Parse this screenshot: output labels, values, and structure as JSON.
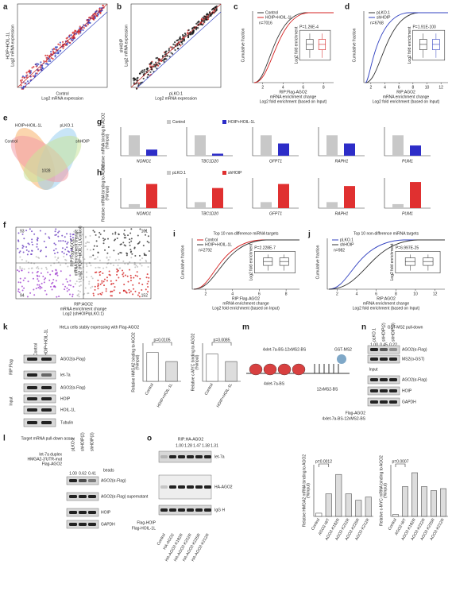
{
  "panels": {
    "a": {
      "label": "a",
      "y_label": "HOIP+HOIL-1L",
      "y_sub": "Log2 mRNA expression",
      "x_label": "Control",
      "x_sub": "Log2 mRNA expression"
    },
    "b": {
      "label": "b",
      "y_label": "shHOIP",
      "y_sub": "Log2 mRNA expression",
      "x_label": "pLKO.1",
      "x_sub": "Log2 mRNA expression"
    },
    "c": {
      "label": "c",
      "legend": [
        "Control",
        "HOIP+HOIL-1L"
      ],
      "n": "n=7016",
      "p": "P=1.26E-4",
      "y_label": "Cumulative fraction",
      "x_label": [
        "RIP:Flag-AGO2",
        "mRNA enrichment change",
        "Log2 fold enrichment (based on Input)"
      ],
      "xticks": [
        2,
        4,
        6,
        8
      ],
      "inset_y": "Log2 fold enrichment"
    },
    "d": {
      "label": "d",
      "legend": [
        "pLKO.1",
        "shHOIP"
      ],
      "n": "n=6768",
      "p": "P=1.91E-100",
      "y_label": "Cumulative fraction",
      "x_label": [
        "RIP:AGO2",
        "mRNA enrichment change",
        "Log2 fold enrichment (based on Input)"
      ],
      "xticks": [
        2,
        4,
        6,
        8,
        10,
        12
      ],
      "inset_y": "Log2 fold enrichment"
    },
    "e": {
      "label": "e",
      "sets": [
        "HOIP+HOIL-1L",
        "pLKO.1",
        "Control",
        "shHOIP"
      ],
      "overlap": "1028"
    },
    "f": {
      "label": "f",
      "y_label": [
        "RIP:Flag-AGO2",
        "mRNA enrichment change",
        "Log2 (HOIP+HOIL-1L/Control)"
      ],
      "x_label": [
        "RIP:AGO2",
        "mRNA enrichment change",
        "Log2 (shHOIP/pLKO.1)"
      ],
      "quadrants": [
        "93",
        "101",
        "94",
        "152"
      ]
    },
    "g": {
      "label": "g",
      "y_label": [
        "Relative mRNA binding to AGO2",
        "(%Input)"
      ],
      "categories": [
        "NOMO1",
        "TBC1D20",
        "GFPT1",
        "RAPH1",
        "PUM1"
      ],
      "ylim": [
        0,
        1.4
      ],
      "series": [
        {
          "name": "Control",
          "color": "#c8c8c8",
          "values": [
            1.0,
            1.0,
            1.0,
            1.0,
            1.0
          ]
        },
        {
          "name": "HOIP+HOIL-1L",
          "color": "#2d2dc8",
          "values": [
            0.3,
            0.1,
            0.6,
            0.6,
            0.5
          ]
        }
      ]
    },
    "h": {
      "label": "h",
      "y_label": [
        "Relative mRNA binding to AGO2",
        "(%Input)"
      ],
      "categories": [
        "NOMO1",
        "TBC1D20",
        "GFPT1",
        "RAPH1",
        "PUM1"
      ],
      "ylim": [
        0,
        1.5
      ],
      "series": [
        {
          "name": "pLKO.1",
          "color": "#c8c8c8",
          "values": [
            0.2,
            0.3,
            0.3,
            0.3,
            0.2
          ]
        },
        {
          "name": "shHOIP",
          "color": "#e03030",
          "values": [
            1.2,
            1.0,
            1.2,
            1.1,
            1.3
          ]
        }
      ]
    },
    "i": {
      "label": "i",
      "title": "Top 10 non-difference miRNA targets",
      "legend": [
        "Control",
        "HOIP+HOIL-1L"
      ],
      "n": "n=2792",
      "p": "P=2.228E-7",
      "y_label": "Cumulative fraction",
      "x_label": [
        "RIP:Flag-AGO2",
        "mRNA enrichment change",
        "Log2 fold enrichment (based on Input)"
      ],
      "xticks": [
        2,
        4,
        6,
        8
      ],
      "inset_y": "Log2 fold enrichment"
    },
    "j": {
      "label": "j",
      "title": "Top 10 non-difference miRNA targets",
      "legend": [
        "pLKO.1",
        "shHOIP"
      ],
      "n": "n=982",
      "p": "P=6.997E-25",
      "y_label": "Cumulative fraction",
      "x_label": [
        "RIP:AGO2",
        "mRNA enrichment change",
        "Log2 fold enrichment (based on Input)"
      ],
      "xticks": [
        2,
        4,
        6,
        8,
        10,
        12
      ],
      "inset_y": "Log2 fold enrichment"
    },
    "k": {
      "label": "k",
      "title": "HeLa cells stably expressing with Flag-AGO2",
      "lanes": [
        "Control",
        "HOIP+HOIL-1L"
      ],
      "groups": [
        "RIP:Flag",
        "Input"
      ],
      "blots": [
        "AGO2(α-Flag)",
        "let-7a",
        "AGO2(α-Flag)",
        "HOIP",
        "HOIL-1L",
        "Tubulin"
      ],
      "charts": [
        {
          "y_label": [
            "Relative HMGA2 binding to AGO2",
            "(%Input)"
          ],
          "p": "p=0.0105",
          "categories": [
            "Control",
            "HOIP+HOIL-1L"
          ],
          "values": [
            1.9,
            1.3
          ],
          "ylim": [
            0,
            2.5
          ]
        },
        {
          "y_label": [
            "Relative c-MYC binding to AGO2",
            "(%Input)"
          ],
          "p": "p=0.0085",
          "categories": [
            "Control",
            "HOIP+HOIL-1L"
          ],
          "values": [
            1.8,
            1.3
          ],
          "ylim": [
            0,
            2.5
          ]
        }
      ]
    },
    "m": {
      "label": "m",
      "construct": "4xlet-7a-BS-12xMS2-BS",
      "protein": "GST-MS2",
      "site1": "4xlet-7a-BS",
      "site2": "12xMS2-BS"
    },
    "n": {
      "label": "n",
      "title": "GST-MS2 pull-down",
      "lanes": [
        "pLKO.1",
        "shHOIP(2)",
        "shHOIP(3)"
      ],
      "ratios": [
        "1.00",
        "0.45",
        "0.22"
      ],
      "input": "Input",
      "blots": [
        "AGO2(α-Flag)",
        "MS2(α-GST)",
        "AGO2(α-Flag)",
        "HOIP",
        "GAPDH"
      ],
      "rows": [
        "Flag-AGO2",
        "4xlet-7a-BS-12xMS2-BS"
      ]
    },
    "l": {
      "label": "l",
      "title": "Target mRNA pull-down assay",
      "rows": [
        "let-7a duplex",
        "HMGA2-3'UTR-mut",
        "Flag-AGO2"
      ],
      "lanes": [
        "pLKO.1",
        "shHOIP(2)",
        "shHOIP(3)"
      ],
      "beads": "beads",
      "ratios": [
        "1.00",
        "0.62",
        "0.41"
      ],
      "blots": [
        "AGO2(α-Flag)",
        "AGO2(α-Flag) supernatant",
        "HOIP",
        "GAPDH"
      ]
    },
    "o": {
      "label": "o",
      "title": "RIP:HA-AGO2",
      "ratios": [
        "1.00",
        "1.28",
        "1.47",
        "1.38",
        "1.31"
      ],
      "blots": [
        "let-7a",
        "HA-AGO2",
        "IgG H"
      ],
      "rows": [
        "Flag-HOIP",
        "Flag-HOIL-1L"
      ],
      "lanes": [
        "Control",
        "HA-AGO2",
        "HA-AGO2-K182R",
        "HA-AGO2-K222R",
        "HA-AGO2-K225R",
        "HA-AGO2-K212R"
      ],
      "charts": [
        {
          "y_label": [
            "Relative HMGA2 mRNA binding to AGO2",
            "(%Input)"
          ],
          "p": "p=0.0012",
          "categories": [
            "Control",
            "AGO2-WT",
            "AGO2-K182R",
            "AGO2-K222R",
            "AGO2-K225R",
            "AGO2-K212R"
          ],
          "values": [
            0.1,
            0.7,
            1.3,
            0.7,
            0.5,
            0.6
          ],
          "ylim": [
            0,
            1.6
          ]
        },
        {
          "y_label": [
            "Relative c-MYC mRNA binding to AGO2",
            "(%Input)"
          ],
          "p": "p=0.0007",
          "categories": [
            "Control",
            "AGO2-WT",
            "AGO2-K182R",
            "AGO2-K222R",
            "AGO2-K225R",
            "AGO2-K212R"
          ],
          "values": [
            0.1,
            1.5,
            2.2,
            1.5,
            1.3,
            1.4
          ],
          "ylim": [
            0,
            2.6
          ]
        }
      ]
    }
  }
}
